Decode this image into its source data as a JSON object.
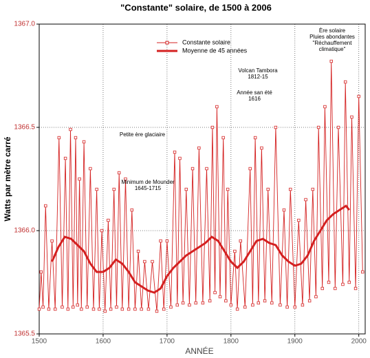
{
  "chart_data": {
    "type": "line",
    "title": "\"Constante\" solaire, de 1500 à 2006",
    "xlabel": "ANNÉE",
    "ylabel": "Watts par mètre carré",
    "xlim": [
      1500,
      2010
    ],
    "xticks": [
      1500,
      1600,
      1700,
      1800,
      1900,
      2000
    ],
    "ylim": [
      1365.5,
      1367.0
    ],
    "yticks": [
      {
        "value": 1365.5,
        "label": "1365.5"
      },
      {
        "value": 1366.0,
        "label": "1366.0"
      },
      {
        "value": 1366.5,
        "label": "1366.5"
      },
      {
        "value": 1367.0,
        "label": "1367.0"
      }
    ],
    "grid": true,
    "legend": "top",
    "series": [
      {
        "name": "Constante solaire",
        "color": "#d42020",
        "markers": true,
        "x": [
          1500,
          1503,
          1506,
          1510,
          1515,
          1520,
          1525,
          1531,
          1536,
          1541,
          1545,
          1549,
          1553,
          1557,
          1560,
          1563,
          1566,
          1570,
          1575,
          1580,
          1585,
          1590,
          1594,
          1598,
          1603,
          1608,
          1612,
          1617,
          1621,
          1625,
          1630,
          1635,
          1640,
          1645,
          1650,
          1655,
          1660,
          1665,
          1671,
          1677,
          1684,
          1690,
          1695,
          1700,
          1706,
          1712,
          1716,
          1720,
          1725,
          1730,
          1735,
          1740,
          1745,
          1750,
          1756,
          1762,
          1767,
          1771,
          1775,
          1778,
          1783,
          1788,
          1792,
          1795,
          1800,
          1806,
          1810,
          1815,
          1822,
          1830,
          1834,
          1838,
          1843,
          1848,
          1853,
          1858,
          1864,
          1870,
          1877,
          1883,
          1888,
          1893,
          1900,
          1906,
          1912,
          1917,
          1923,
          1928,
          1933,
          1937,
          1943,
          1947,
          1953,
          1957,
          1963,
          1968,
          1975,
          1979,
          1985,
          1989,
          1995,
          2000,
          2006
        ],
        "values": [
          1365.62,
          1365.8,
          1365.63,
          1366.12,
          1365.62,
          1365.95,
          1365.62,
          1366.45,
          1365.63,
          1366.35,
          1365.62,
          1366.49,
          1365.63,
          1366.45,
          1365.64,
          1366.25,
          1365.62,
          1366.43,
          1365.63,
          1366.3,
          1365.62,
          1366.2,
          1365.62,
          1366.0,
          1365.61,
          1366.05,
          1365.62,
          1366.2,
          1365.63,
          1366.28,
          1365.62,
          1366.25,
          1365.62,
          1366.1,
          1365.62,
          1365.9,
          1365.62,
          1365.85,
          1365.62,
          1365.85,
          1365.61,
          1365.95,
          1365.62,
          1365.95,
          1365.63,
          1366.38,
          1365.64,
          1366.35,
          1365.65,
          1366.2,
          1365.64,
          1366.3,
          1365.65,
          1366.4,
          1365.65,
          1366.3,
          1365.66,
          1366.5,
          1365.7,
          1366.6,
          1365.68,
          1366.45,
          1365.66,
          1366.2,
          1365.64,
          1365.9,
          1365.62,
          1365.95,
          1365.63,
          1366.3,
          1365.64,
          1366.45,
          1365.65,
          1366.4,
          1365.66,
          1366.2,
          1365.65,
          1366.5,
          1365.64,
          1366.1,
          1365.63,
          1366.2,
          1365.63,
          1366.05,
          1365.64,
          1366.15,
          1365.66,
          1366.2,
          1365.68,
          1366.5,
          1365.72,
          1366.6,
          1365.75,
          1366.82,
          1365.72,
          1366.5,
          1365.74,
          1366.72,
          1365.75,
          1366.55,
          1365.72,
          1366.65,
          1365.8
        ]
      },
      {
        "name": "Moyenne de 45 années",
        "color": "#d42020",
        "markers": false,
        "x": [
          1520,
          1530,
          1540,
          1550,
          1560,
          1570,
          1580,
          1590,
          1600,
          1610,
          1620,
          1630,
          1640,
          1650,
          1660,
          1670,
          1680,
          1690,
          1700,
          1710,
          1720,
          1730,
          1740,
          1750,
          1760,
          1770,
          1780,
          1790,
          1800,
          1810,
          1820,
          1830,
          1840,
          1850,
          1860,
          1870,
          1880,
          1890,
          1900,
          1910,
          1920,
          1930,
          1940,
          1950,
          1960,
          1970,
          1980,
          1985
        ],
        "values": [
          1365.85,
          1365.92,
          1365.97,
          1365.96,
          1365.93,
          1365.9,
          1365.84,
          1365.8,
          1365.8,
          1365.82,
          1365.86,
          1365.84,
          1365.8,
          1365.75,
          1365.73,
          1365.71,
          1365.7,
          1365.72,
          1365.78,
          1365.82,
          1365.85,
          1365.88,
          1365.9,
          1365.92,
          1365.94,
          1365.97,
          1365.95,
          1365.9,
          1365.85,
          1365.82,
          1365.85,
          1365.9,
          1365.95,
          1365.96,
          1365.94,
          1365.93,
          1365.88,
          1365.85,
          1365.83,
          1365.84,
          1365.88,
          1365.95,
          1366.0,
          1366.05,
          1366.08,
          1366.1,
          1366.12,
          1366.1
        ]
      }
    ],
    "annotations": [
      [
        "Petite ère glaciaire"
      ],
      [
        "Minimum de Mounder",
        "1645-1715"
      ],
      [
        "Volcan Tambora",
        "1812-15"
      ],
      [
        "Année san été",
        "1616"
      ],
      [
        "Ère solaire",
        "Pluies abondantes",
        "\"Réchauffement",
        "climatique\""
      ]
    ]
  }
}
